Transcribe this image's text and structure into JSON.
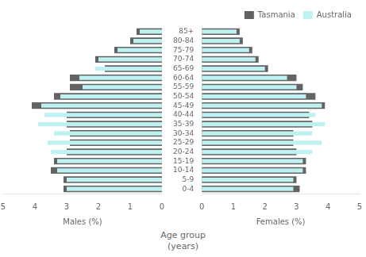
{
  "chart_data": [
    {
      "type": "bar",
      "orientation": "horizontal",
      "xlabel": "Males (%)",
      "categories": [
        "0-4",
        "5-9",
        "10-14",
        "15-19",
        "20-24",
        "25-29",
        "30-34",
        "35-39",
        "40-44",
        "45-49",
        "50-54",
        "55-59",
        "60-64",
        "65-69",
        "70-74",
        "75-79",
        "80-84",
        "85+"
      ],
      "series": [
        {
          "name": "Tasmania",
          "color": "#636363",
          "values": [
            3.1,
            3.1,
            3.5,
            3.4,
            3.0,
            2.9,
            2.9,
            3.0,
            3.0,
            4.1,
            3.4,
            2.9,
            2.9,
            1.8,
            2.1,
            1.5,
            1.0,
            0.8
          ]
        },
        {
          "name": "Australia",
          "color": "#bef2f2",
          "values": [
            3.0,
            3.0,
            3.3,
            3.3,
            3.5,
            3.6,
            3.4,
            3.9,
            3.7,
            3.8,
            3.2,
            2.5,
            2.6,
            2.1,
            2.0,
            1.4,
            0.9,
            0.7
          ]
        }
      ],
      "xlim": [
        5.0,
        0
      ],
      "xticks": [
        0,
        1,
        2,
        3,
        4,
        5
      ],
      "grid": false,
      "tick_labels": "x"
    },
    {
      "type": "bar",
      "orientation": "horizontal",
      "xlabel": "Females (%)",
      "ylabel": "Age group\n(years)",
      "categories": [
        "0-4",
        "5-9",
        "10-14",
        "15-19",
        "20-24",
        "25-29",
        "30-34",
        "35-39",
        "40-44",
        "45-49",
        "50-54",
        "55-59",
        "60-64",
        "65-69",
        "70-74",
        "75-79",
        "80-84",
        "85+"
      ],
      "series": [
        {
          "name": "Tasmania",
          "color": "#636363",
          "values": [
            3.1,
            3.0,
            3.3,
            3.3,
            3.0,
            2.9,
            2.9,
            3.5,
            3.4,
            3.9,
            3.6,
            3.2,
            3.0,
            2.1,
            1.8,
            1.6,
            1.3,
            1.2
          ]
        },
        {
          "name": "Australia",
          "color": "#bef2f2",
          "values": [
            2.9,
            2.9,
            3.2,
            3.2,
            3.5,
            3.8,
            3.5,
            3.9,
            3.6,
            3.8,
            3.3,
            3.0,
            2.7,
            2.0,
            1.7,
            1.5,
            1.2,
            1.1
          ]
        }
      ],
      "xlim": [
        0,
        5.0
      ],
      "xticks": [
        0,
        1,
        2,
        3,
        4,
        5
      ],
      "grid": false,
      "legend": "upper right"
    }
  ]
}
